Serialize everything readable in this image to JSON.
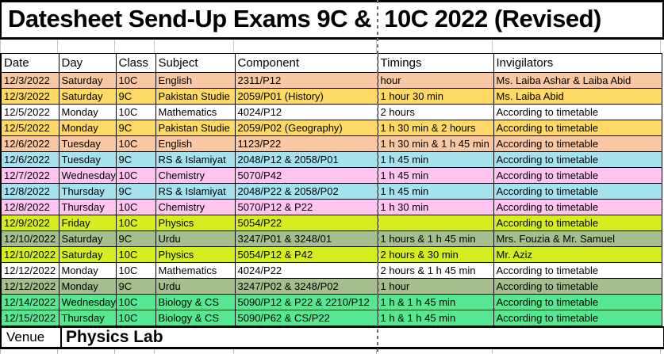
{
  "title": "Datesheet Send-Up Exams 9C &  10C 2022 (Revised)",
  "columns": [
    "Date",
    "Day",
    "Class",
    "Subject",
    "Component",
    "Timings",
    "Invigilators"
  ],
  "rows": [
    {
      "date": "12/3/2022",
      "day": "Saturday",
      "class": "10C",
      "subject": "English",
      "component": "2311/P12",
      "timings": "hour",
      "invigilators": "Ms. Laiba Ashar & Laiba Abid",
      "color": "#f8c8a4"
    },
    {
      "date": "12/3/2022",
      "day": "Saturday",
      "class": "9C",
      "subject": "Pakistan Studie",
      "component": "2059/P01 (History)",
      "timings": "1 hour 30 min",
      "invigilators": "Ms. Laiba Abid",
      "color": "#ffd966"
    },
    {
      "date": "12/5/2022",
      "day": "Monday",
      "class": "10C",
      "subject": "Mathematics",
      "component": "4024/P12",
      "timings": "2 hours",
      "invigilators": "According to timetable",
      "color": "#ffffff"
    },
    {
      "date": "12/5/2022",
      "day": "Monday",
      "class": "9C",
      "subject": "Pakistan Studie",
      "component": "2059/P02 (Geography)",
      "timings": "1 h 30 min & 2 hours",
      "invigilators": "According to timetable",
      "color": "#ffd966"
    },
    {
      "date": "12/6/2022",
      "day": "Tuesday",
      "class": "10C",
      "subject": "English",
      "component": "1123/P22",
      "timings": "1 h 30 min & 1 h 45 min",
      "invigilators": "According to timetable",
      "color": "#f8c8a4"
    },
    {
      "date": "12/6/2022",
      "day": "Tuesday",
      "class": "9C",
      "subject": "RS & Islamiyat",
      "component": "2048/P12 & 2058/P01",
      "timings": "1 h 45 min",
      "invigilators": "According to timetable",
      "color": "#a6e1ee"
    },
    {
      "date": "12/7/2022",
      "day": "Wednesday",
      "class": "10C",
      "subject": "Chemistry",
      "component": "5070/P42",
      "timings": "1 h 45 min",
      "invigilators": "According to timetable",
      "color": "#fec5f0"
    },
    {
      "date": "12/8/2022",
      "day": "Thursday",
      "class": "9C",
      "subject": "RS & Islamiyat",
      "component": "2048/P22 & 2058/P02",
      "timings": "1 h 45 min",
      "invigilators": "According to timetable",
      "color": "#a6e1ee"
    },
    {
      "date": "12/8/2022",
      "day": "Thursday",
      "class": "10C",
      "subject": "Chemistry",
      "component": "5070/P12 & P22",
      "timings": "1 h 30 min",
      "invigilators": "According to timetable",
      "color": "#fec5f0"
    },
    {
      "date": "12/9/2022",
      "day": "Friday",
      "class": "10C",
      "subject": "Physics",
      "component": "5054/P22",
      "timings": "",
      "invigilators": "According to timetable",
      "color": "#d6ee20"
    },
    {
      "date": "12/10/2022",
      "day": "Saturday",
      "class": "9C",
      "subject": "Urdu",
      "component": "3247/P01 & 3248/01",
      "timings": "1 hours & 1 h 45 min",
      "invigilators": "Mrs. Fouzia & Mr. Samuel",
      "color": "#a6bd8d"
    },
    {
      "date": "12/10/2022",
      "day": "Saturday",
      "class": "10C",
      "subject": "Physics",
      "component": "5054/P12 & P42",
      "timings": "2 hours & 30 min",
      "invigilators": "Mr. Aziz",
      "color": "#d6ee20"
    },
    {
      "date": "12/12/2022",
      "day": "Monday",
      "class": "10C",
      "subject": "Mathematics",
      "component": "4024/P22",
      "timings": "2 hours & 1 h 45 min",
      "invigilators": "According to timetable",
      "color": "#ffffff"
    },
    {
      "date": "12/12/2022",
      "day": "Monday",
      "class": "9C",
      "subject": "Urdu",
      "component": "3247/P02 & 3248/P02",
      "timings": "1 hour",
      "invigilators": "According to timetable",
      "color": "#a6bd8d"
    },
    {
      "date": "12/14/2022",
      "day": "Wednesday",
      "class": "10C",
      "subject": "Biology & CS",
      "component": "5090/P12 & P22 & 2210/P12",
      "timings": "1 h & 1 h 45 min",
      "invigilators": "According to timetable",
      "color": "#57e691"
    },
    {
      "date": "12/15/2022",
      "day": "Thursday",
      "class": "10C",
      "subject": "Biology & CS",
      "component": "5090/P62 & CS/P22",
      "timings": "1 h & 1 h 45 min",
      "invigilators": "According to timetable",
      "color": "#57e691"
    }
  ],
  "venue": {
    "label": "Venue",
    "value": "Physics Lab"
  },
  "colors": {
    "border": "#000000",
    "gridline_stub": "#c9c9c9",
    "page_break_dash": "#6f6f6f",
    "row_peach": "#f8c8a4",
    "row_gold": "#ffd966",
    "row_cyan": "#a6e1ee",
    "row_pink": "#fec5f0",
    "row_chartreuse": "#d6ee20",
    "row_sage": "#a6bd8d",
    "row_mint": "#57e691",
    "row_white": "#ffffff"
  }
}
